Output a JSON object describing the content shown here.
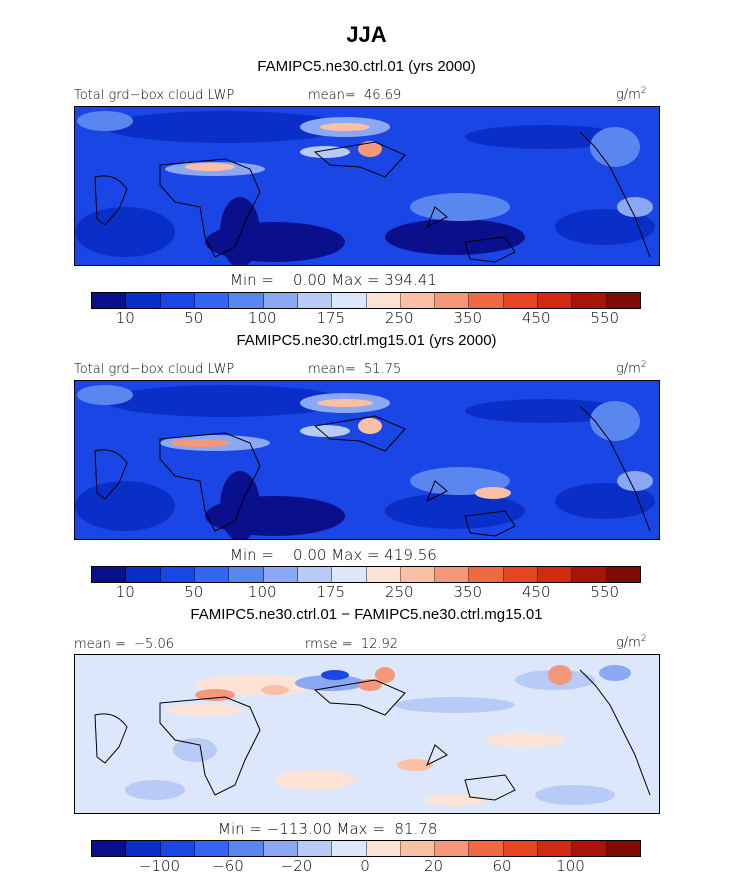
{
  "title": "JJA",
  "panels": [
    {
      "subtitle": "FAMIPC5.ne30.ctrl.01 (yrs 2000)",
      "left_label": "Total grd−box cloud LWP",
      "mid_label": "mean=  46.69",
      "right_label": "",
      "units": "g/m",
      "units_sup": "2",
      "stats": "Min =    0.00 Max = 394.41",
      "tick_labels": [
        "10",
        "50",
        "100",
        "175",
        "250",
        "350",
        "450",
        "550"
      ],
      "colors": [
        "#0a0f8c",
        "#0a2fc8",
        "#1a46e6",
        "#3366f2",
        "#5a86f0",
        "#8aa8f3",
        "#b8cbf6",
        "#dde7fb",
        "#fde3d6",
        "#f9c0a6",
        "#f4977a",
        "#ef6a43",
        "#e6451f",
        "#d22a12",
        "#a81408",
        "#7f0b06"
      ]
    },
    {
      "subtitle": "FAMIPC5.ne30.ctrl.mg15.01 (yrs 2000)",
      "left_label": "Total grd−box cloud LWP",
      "mid_label": "mean=  51.75",
      "right_label": "",
      "units": "g/m",
      "units_sup": "2",
      "stats": "Min =    0.00 Max = 419.56",
      "tick_labels": [
        "10",
        "50",
        "100",
        "175",
        "250",
        "350",
        "450",
        "550"
      ],
      "colors": [
        "#0a0f8c",
        "#0a2fc8",
        "#1a46e6",
        "#3366f2",
        "#5a86f0",
        "#8aa8f3",
        "#b8cbf6",
        "#dde7fb",
        "#fde3d6",
        "#f9c0a6",
        "#f4977a",
        "#ef6a43",
        "#e6451f",
        "#d22a12",
        "#a81408",
        "#7f0b06"
      ]
    },
    {
      "subtitle": "FAMIPC5.ne30.ctrl.01 − FAMIPC5.ne30.ctrl.mg15.01",
      "left_label": "mean =  −5.06",
      "mid_label": "rmse =  12.92",
      "right_label": "",
      "units": "g/m",
      "units_sup": "2",
      "stats": "Min = −113.00 Max =  81.78",
      "tick_labels": [
        "−100",
        "−60",
        "−20",
        "0",
        "20",
        "60",
        "100"
      ],
      "colors": [
        "#0a0f8c",
        "#0a2fc8",
        "#1a46e6",
        "#3366f2",
        "#5a86f0",
        "#8aa8f3",
        "#b8cbf6",
        "#dde7fb",
        "#fde3d6",
        "#f9c0a6",
        "#f4977a",
        "#ef6a43",
        "#e6451f",
        "#d22a12",
        "#a81408",
        "#7f0b06"
      ]
    }
  ]
}
